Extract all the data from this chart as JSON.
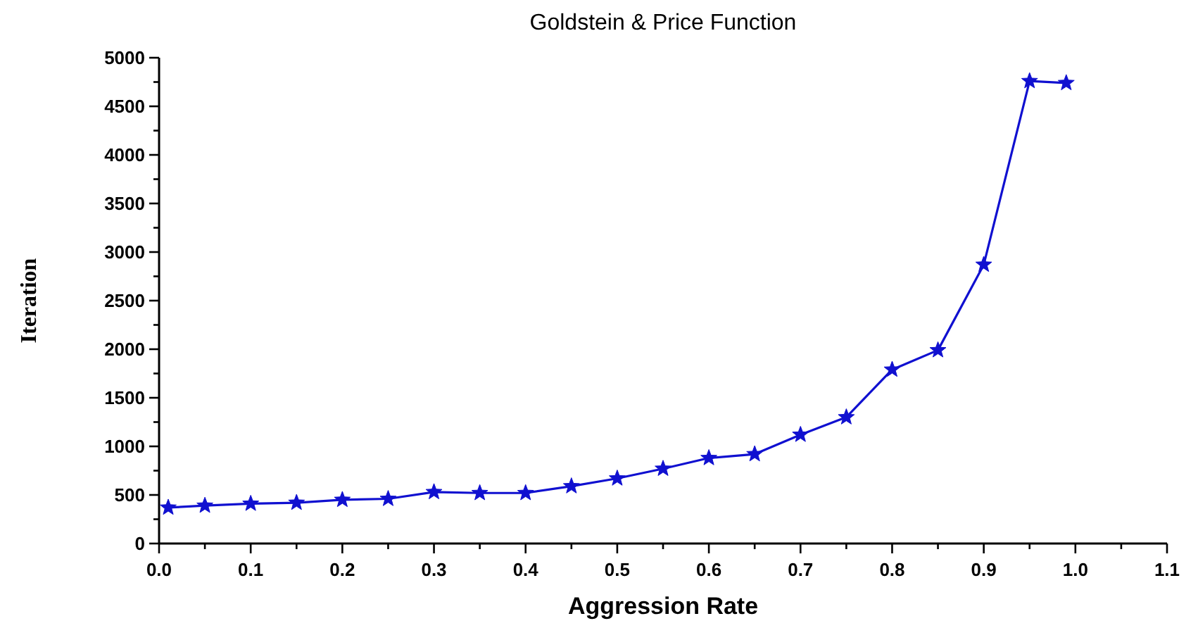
{
  "chart_data": {
    "type": "line",
    "title": "Goldstein & Price Function",
    "xlabel": "Aggression Rate",
    "ylabel": "Iteration",
    "x": [
      0.01,
      0.05,
      0.1,
      0.15,
      0.2,
      0.25,
      0.3,
      0.35,
      0.4,
      0.45,
      0.5,
      0.55,
      0.6,
      0.65,
      0.7,
      0.75,
      0.8,
      0.85,
      0.9,
      0.95,
      0.99
    ],
    "values": [
      370,
      390,
      410,
      420,
      450,
      460,
      530,
      520,
      520,
      590,
      670,
      770,
      880,
      920,
      1120,
      1300,
      1790,
      1990,
      2870,
      4760,
      4740
    ],
    "color": "#1010d0",
    "marker": "star",
    "line_style": "solid",
    "xlim": [
      0,
      1.1
    ],
    "xticks": [
      {
        "value": 0,
        "label": "0.0"
      },
      {
        "value": 0.05,
        "label": null
      },
      0.1,
      {
        "value": 0.15,
        "label": null
      },
      0.2,
      {
        "value": 0.25,
        "label": null
      },
      0.3,
      {
        "value": 0.35,
        "label": null
      },
      0.4,
      {
        "value": 0.45,
        "label": null
      },
      0.5,
      {
        "value": 0.55,
        "label": null
      },
      0.6,
      {
        "value": 0.65,
        "label": null
      },
      0.7,
      {
        "value": 0.75,
        "label": null
      },
      0.8,
      {
        "value": 0.85,
        "label": null
      },
      0.9,
      {
        "value": 0.95,
        "label": null
      },
      {
        "value": 1,
        "label": "1.0"
      },
      {
        "value": 1.05,
        "label": null
      },
      1.1
    ],
    "ylim": [
      0,
      5000
    ],
    "yticks": [
      0,
      {
        "value": 250,
        "label": null
      },
      500,
      {
        "value": 750,
        "label": null
      },
      1000,
      {
        "value": 1250,
        "label": null
      },
      1500,
      {
        "value": 1750,
        "label": null
      },
      2000,
      {
        "value": 2250,
        "label": null
      },
      2500,
      {
        "value": 2750,
        "label": null
      },
      3000,
      {
        "value": 3250,
        "label": null
      },
      3500,
      {
        "value": 3750,
        "label": null
      },
      4000,
      {
        "value": 4250,
        "label": null
      },
      4500,
      {
        "value": 4750,
        "label": null
      },
      5000
    ]
  }
}
